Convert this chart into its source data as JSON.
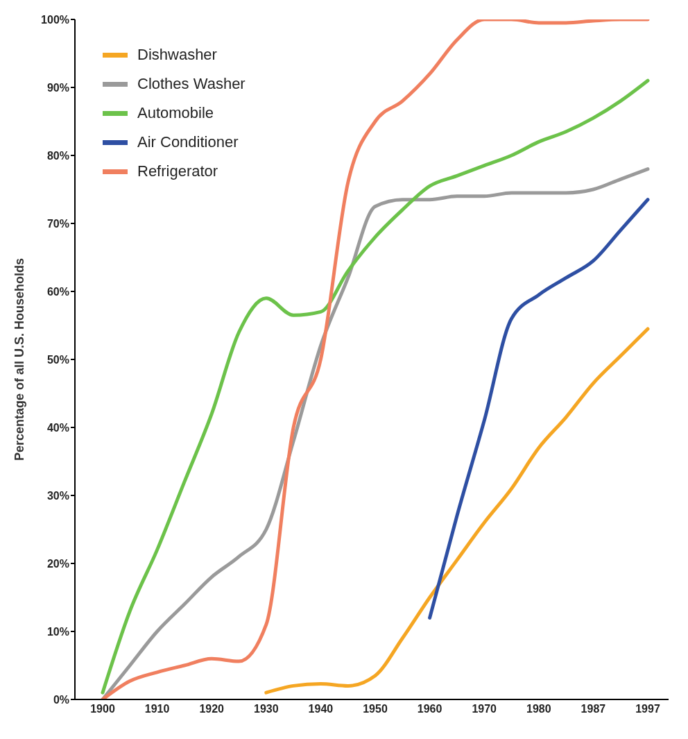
{
  "chart_data": {
    "type": "line",
    "ylabel": "Percentage of all U.S. Households",
    "categories": [
      "1900",
      null,
      "1910",
      null,
      "1920",
      null,
      "1930",
      null,
      "1940",
      null,
      "1950",
      null,
      "1960",
      null,
      "1970",
      null,
      "1980",
      null,
      "1987",
      null,
      "1997"
    ],
    "series": [
      {
        "name": "Dishwasher",
        "color": "#f5a623",
        "values": [
          null,
          null,
          null,
          null,
          null,
          null,
          1,
          2,
          2.3,
          2,
          3.5,
          9,
          15,
          20.5,
          26,
          31,
          37,
          41.5,
          46.5,
          50.5,
          54.5
        ]
      },
      {
        "name": "Clothes Washer",
        "color": "#9a9a9a",
        "values": [
          0,
          5,
          10,
          14,
          18,
          21,
          25,
          38,
          52,
          62,
          72.5,
          73.5,
          73.5,
          74,
          74,
          74.5,
          74.5,
          74.5,
          75,
          76.5,
          78
        ]
      },
      {
        "name": "Automobile",
        "color": "#6cc24a",
        "values": [
          1,
          13,
          22,
          32,
          42,
          54,
          59,
          56.5,
          57,
          63,
          68,
          72,
          75.5,
          77,
          78.5,
          80,
          82,
          83.5,
          85.5,
          88,
          91
        ]
      },
      {
        "name": "Air Conditioner",
        "color": "#2e4fa3",
        "values": [
          null,
          null,
          null,
          null,
          null,
          null,
          null,
          null,
          null,
          null,
          null,
          null,
          12,
          27,
          41,
          56,
          59.5,
          62,
          64.5,
          69,
          73.5
        ]
      },
      {
        "name": "Refrigerator",
        "color": "#f07f5f",
        "values": [
          0,
          2.7,
          4,
          5,
          6,
          5.6,
          11,
          40,
          50,
          76,
          85,
          88,
          92,
          97,
          100,
          100,
          99.5,
          99.5,
          99.8,
          100,
          100
        ]
      }
    ],
    "ylim": [
      0,
      100
    ],
    "yticks": [
      {
        "value": 0,
        "label": "0%"
      },
      {
        "value": 10,
        "label": "10%"
      },
      {
        "value": 20,
        "label": "20%"
      },
      {
        "value": 30,
        "label": "30%"
      },
      {
        "value": 40,
        "label": "40%"
      },
      {
        "value": 50,
        "label": "50%"
      },
      {
        "value": 60,
        "label": "60%"
      },
      {
        "value": 70,
        "label": "70%"
      },
      {
        "value": 80,
        "label": "80%"
      },
      {
        "value": 90,
        "label": "90%"
      },
      {
        "value": 100,
        "label": "100%"
      }
    ],
    "grid": false,
    "legend": "top left"
  }
}
